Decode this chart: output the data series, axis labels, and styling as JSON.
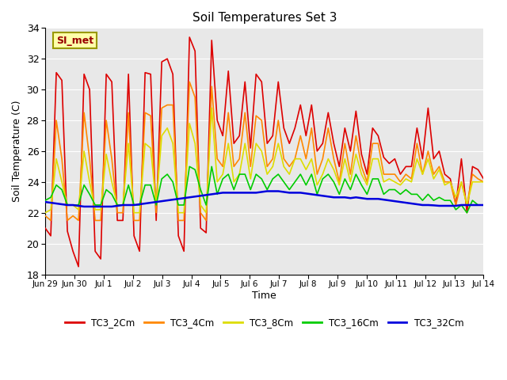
{
  "title": "Soil Temperatures Set 3",
  "xlabel": "Time",
  "ylabel": "Soil Temperature (C)",
  "ylim": [
    18,
    34
  ],
  "yticks": [
    18,
    20,
    22,
    24,
    26,
    28,
    30,
    32,
    34
  ],
  "bg_color": "#e8e8e8",
  "watermark": "SI_met",
  "series_names": [
    "TC3_2Cm",
    "TC3_4Cm",
    "TC3_8Cm",
    "TC3_16Cm",
    "TC3_32Cm"
  ],
  "colors": [
    "#dd0000",
    "#ff8800",
    "#dddd00",
    "#00cc00",
    "#0000dd"
  ],
  "linewidths": [
    1.2,
    1.2,
    1.2,
    1.2,
    1.8
  ],
  "TC3_2Cm": [
    21.0,
    20.5,
    31.1,
    30.6,
    20.8,
    19.5,
    18.5,
    31.0,
    30.0,
    19.5,
    19.0,
    31.0,
    30.5,
    21.5,
    21.5,
    31.0,
    20.5,
    19.5,
    31.1,
    31.0,
    21.5,
    31.8,
    32.0,
    31.0,
    20.5,
    19.5,
    33.4,
    32.5,
    21.0,
    20.7,
    33.2,
    28.0,
    27.0,
    31.2,
    26.5,
    27.0,
    30.5,
    26.2,
    31.0,
    30.5,
    26.5,
    27.0,
    30.5,
    27.5,
    26.5,
    27.5,
    29.0,
    27.0,
    29.0,
    26.0,
    26.5,
    28.5,
    26.5,
    25.0,
    27.5,
    26.0,
    28.6,
    25.8,
    24.5,
    27.5,
    27.0,
    25.6,
    25.2,
    25.5,
    24.5,
    25.0,
    25.0,
    27.5,
    25.5,
    28.8,
    25.5,
    26.0,
    24.5,
    24.2,
    22.5,
    25.5,
    22.0,
    25.0,
    24.8,
    24.2
  ],
  "TC3_4Cm": [
    21.8,
    21.5,
    28.0,
    25.5,
    21.5,
    21.8,
    21.5,
    28.5,
    25.5,
    21.5,
    21.5,
    28.0,
    25.5,
    22.0,
    22.0,
    28.5,
    21.5,
    21.5,
    28.5,
    28.3,
    22.0,
    28.8,
    29.0,
    29.0,
    21.5,
    21.5,
    30.5,
    29.5,
    22.0,
    21.5,
    30.2,
    25.5,
    25.0,
    28.5,
    25.0,
    25.5,
    28.5,
    25.0,
    28.3,
    28.0,
    25.0,
    25.5,
    28.0,
    25.5,
    25.0,
    25.5,
    27.0,
    25.5,
    27.5,
    24.5,
    25.5,
    27.5,
    25.5,
    24.0,
    26.5,
    24.5,
    27.0,
    25.0,
    24.0,
    26.5,
    26.5,
    24.5,
    24.5,
    24.5,
    24.0,
    24.5,
    24.2,
    26.5,
    24.5,
    26.0,
    24.5,
    25.0,
    24.0,
    24.0,
    22.5,
    24.0,
    22.5,
    24.5,
    24.2,
    24.0
  ],
  "TC3_8Cm": [
    22.0,
    22.2,
    25.5,
    24.0,
    22.5,
    22.5,
    22.2,
    26.0,
    24.0,
    22.2,
    22.2,
    25.8,
    24.0,
    22.5,
    22.5,
    26.5,
    22.0,
    22.0,
    26.5,
    26.2,
    22.5,
    27.0,
    27.5,
    26.5,
    22.0,
    22.0,
    27.8,
    26.5,
    22.5,
    22.0,
    28.8,
    24.0,
    24.5,
    26.5,
    24.0,
    24.5,
    26.5,
    24.2,
    26.5,
    26.0,
    24.5,
    25.0,
    26.5,
    25.0,
    24.5,
    25.5,
    25.5,
    24.8,
    25.5,
    23.8,
    24.5,
    25.5,
    24.8,
    23.8,
    25.5,
    24.0,
    25.8,
    24.5,
    23.8,
    25.5,
    25.5,
    24.0,
    24.2,
    24.0,
    23.8,
    24.2,
    24.0,
    25.5,
    24.5,
    25.5,
    24.2,
    24.8,
    23.8,
    24.0,
    23.0,
    24.0,
    22.5,
    24.0,
    24.0,
    24.0
  ],
  "TC3_16Cm": [
    22.8,
    23.0,
    23.8,
    23.5,
    22.5,
    22.5,
    22.5,
    23.8,
    23.2,
    22.5,
    22.5,
    23.5,
    23.2,
    22.5,
    22.5,
    23.8,
    22.5,
    22.5,
    23.8,
    23.8,
    22.5,
    24.2,
    24.5,
    24.0,
    22.5,
    22.5,
    25.0,
    24.8,
    23.5,
    22.5,
    25.0,
    23.2,
    24.2,
    24.5,
    23.5,
    24.5,
    24.5,
    23.5,
    24.5,
    24.2,
    23.5,
    24.2,
    24.5,
    24.0,
    23.5,
    24.0,
    24.5,
    23.8,
    24.5,
    23.2,
    24.2,
    24.5,
    24.0,
    23.2,
    24.2,
    23.5,
    24.5,
    23.8,
    23.2,
    24.2,
    24.2,
    23.2,
    23.5,
    23.5,
    23.2,
    23.5,
    23.2,
    23.2,
    22.8,
    23.2,
    22.8,
    23.0,
    22.8,
    22.8,
    22.2,
    22.5,
    22.0,
    22.8,
    22.5,
    22.5
  ],
  "TC3_32Cm": [
    22.7,
    22.65,
    22.6,
    22.55,
    22.5,
    22.5,
    22.45,
    22.4,
    22.4,
    22.4,
    22.4,
    22.4,
    22.4,
    22.45,
    22.5,
    22.5,
    22.5,
    22.55,
    22.6,
    22.65,
    22.7,
    22.75,
    22.8,
    22.85,
    22.9,
    22.95,
    23.0,
    23.05,
    23.1,
    23.15,
    23.2,
    23.25,
    23.3,
    23.3,
    23.3,
    23.3,
    23.3,
    23.3,
    23.3,
    23.35,
    23.4,
    23.4,
    23.4,
    23.35,
    23.3,
    23.3,
    23.3,
    23.25,
    23.2,
    23.15,
    23.1,
    23.05,
    23.0,
    23.0,
    23.0,
    22.95,
    23.0,
    22.95,
    22.9,
    22.9,
    22.9,
    22.85,
    22.8,
    22.75,
    22.7,
    22.65,
    22.6,
    22.55,
    22.5,
    22.5,
    22.48,
    22.45,
    22.45,
    22.45,
    22.45,
    22.5,
    22.5,
    22.5,
    22.5,
    22.5
  ],
  "xtick_labels": [
    "Jun 29",
    "Jun 30",
    "Jul 1",
    "Jul 2",
    "Jul 3",
    "Jul 4",
    "Jul 5",
    "Jul 6",
    "Jul 7",
    "Jul 8",
    "Jul 9",
    "Jul 10",
    "Jul 11",
    "Jul 12",
    "Jul 13",
    "Jul 14"
  ],
  "n_days": 16
}
